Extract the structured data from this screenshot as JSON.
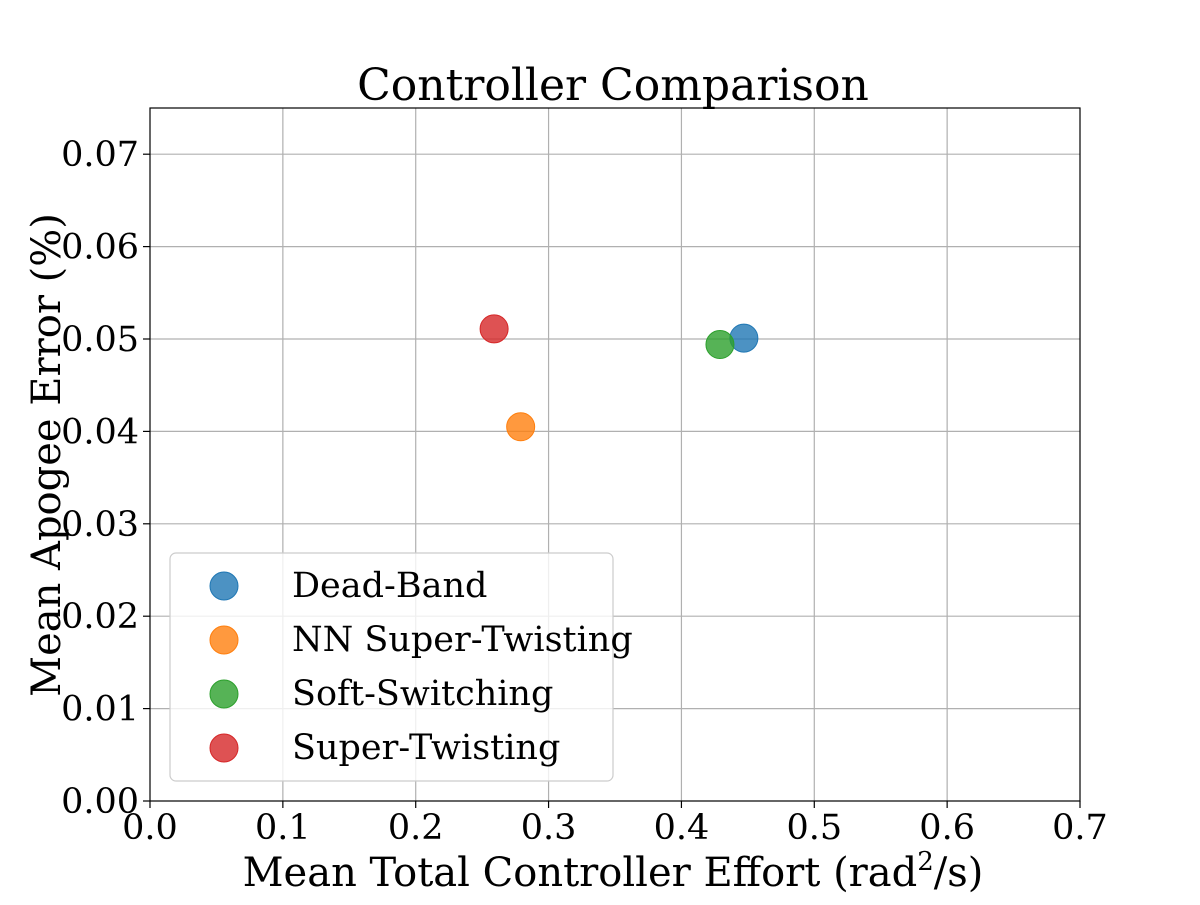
{
  "chart_data": {
    "type": "scatter",
    "title": "Controller Comparison",
    "xlabel": {
      "prefix": "Mean Total Controller Effort (rad",
      "superscript": "2",
      "suffix": "/s)"
    },
    "ylabel": "Mean Apogee Error (%)",
    "xlim": [
      0,
      0.7
    ],
    "ylim": [
      0,
      0.075
    ],
    "x_ticks": [
      {
        "value": 0.0,
        "label": "0.0"
      },
      {
        "value": 0.1,
        "label": "0.1"
      },
      {
        "value": 0.2,
        "label": "0.2"
      },
      {
        "value": 0.3,
        "label": "0.3"
      },
      {
        "value": 0.4,
        "label": "0.4"
      },
      {
        "value": 0.5,
        "label": "0.5"
      },
      {
        "value": 0.6,
        "label": "0.6"
      },
      {
        "value": 0.7,
        "label": "0.7"
      }
    ],
    "y_ticks": [
      {
        "value": 0.0,
        "label": "0.00"
      },
      {
        "value": 0.01,
        "label": "0.01"
      },
      {
        "value": 0.02,
        "label": "0.02"
      },
      {
        "value": 0.03,
        "label": "0.03"
      },
      {
        "value": 0.04,
        "label": "0.04"
      },
      {
        "value": 0.05,
        "label": "0.05"
      },
      {
        "value": 0.06,
        "label": "0.06"
      },
      {
        "value": 0.07,
        "label": "0.07"
      }
    ],
    "grid": true,
    "legend_position": "lower-left",
    "series": [
      {
        "name": "Dead-Band",
        "color": "#1f77b4",
        "points": [
          {
            "x": 0.447,
            "y": 0.0501
          }
        ]
      },
      {
        "name": "NN Super-Twisting",
        "color": "#ff7f0e",
        "points": [
          {
            "x": 0.279,
            "y": 0.0405
          }
        ]
      },
      {
        "name": "Soft-Switching",
        "color": "#2ca02c",
        "points": [
          {
            "x": 0.429,
            "y": 0.0494
          }
        ]
      },
      {
        "name": "Super-Twisting",
        "color": "#d62728",
        "points": [
          {
            "x": 0.259,
            "y": 0.0511
          }
        ]
      }
    ]
  }
}
